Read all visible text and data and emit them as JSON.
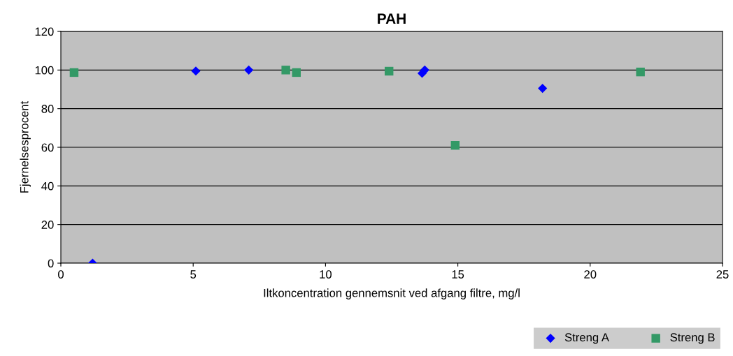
{
  "chart_data": {
    "type": "scatter",
    "title": "PAH",
    "xlabel": "Iltkoncentration gennemsnit ved afgang filtre, mg/l",
    "ylabel": "Fjernelsesprocent",
    "xlim": [
      0,
      25
    ],
    "xticks": [
      0,
      5,
      10,
      15,
      20,
      25
    ],
    "ylim": [
      0,
      120
    ],
    "yticks": [
      0,
      20,
      40,
      60,
      80,
      100,
      120
    ],
    "grid": "y",
    "legend": "bottom right",
    "series": [
      {
        "name": "Streng A",
        "color": "#0000ff",
        "marker": "diamond",
        "x": [
          1.2,
          5.1,
          7.1,
          13.65,
          13.75,
          18.2
        ],
        "values": [
          0,
          99.5,
          100,
          98.3,
          100,
          90.5
        ]
      },
      {
        "name": "Streng B",
        "color": "#339966",
        "marker": "square",
        "x": [
          0.5,
          8.5,
          8.9,
          12.4,
          14.9,
          21.9
        ],
        "values": [
          98.7,
          100,
          98.7,
          99.4,
          61,
          99
        ]
      }
    ]
  }
}
